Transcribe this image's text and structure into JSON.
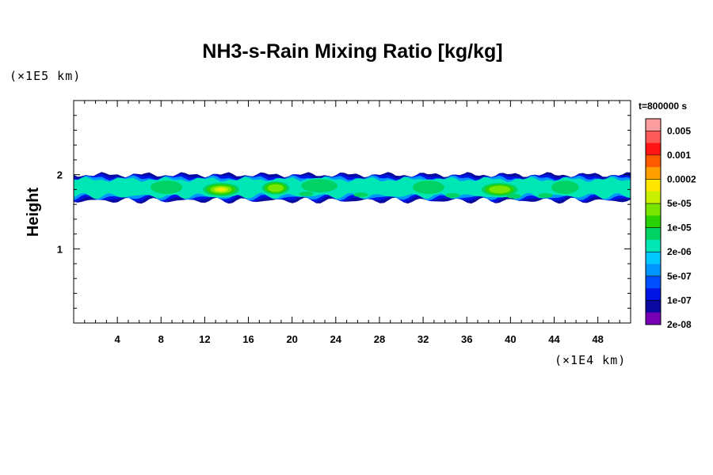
{
  "chart_data": {
    "type": "heatmap",
    "title": "NH3-s-Rain Mixing Ratio [kg/kg]",
    "ylabel": "Height",
    "xlabel": "",
    "x_unit": "(×1E4 km)",
    "y_unit": "(×1E5 km)",
    "xlim": [
      0,
      51
    ],
    "ylim": [
      0,
      3
    ],
    "x_ticks": [
      "4",
      "8",
      "12",
      "16",
      "20",
      "24",
      "28",
      "32",
      "36",
      "40",
      "44",
      "48"
    ],
    "y_ticks": [
      "1",
      "2"
    ],
    "grid": false,
    "colorbar": {
      "title": "t=800000 s",
      "levels": [
        "0.005",
        "0.001",
        "0.0002",
        "5e-05",
        "1e-05",
        "2e-06",
        "5e-07",
        "1e-07",
        "2e-08"
      ],
      "colors": [
        "#ff9e9e",
        "#ff5a5a",
        "#ff1414",
        "#ff5a00",
        "#ffa000",
        "#ffe600",
        "#c8f000",
        "#78e600",
        "#28d200",
        "#00d264",
        "#00e6b4",
        "#00c8ff",
        "#0096ff",
        "#0050ff",
        "#0014e6",
        "#0a0aa0",
        "#7800b4"
      ]
    },
    "band": {
      "y_bottom": 1.65,
      "y_top": 2.0,
      "note_blobs": [
        {
          "x": 4,
          "y": 1.82,
          "w": 3.0,
          "level": "2e-06"
        },
        {
          "x": 8.5,
          "y": 1.83,
          "w": 3.5,
          "level": "1e-05"
        },
        {
          "x": 13.5,
          "y": 1.8,
          "w": 4.0,
          "level": "0.0002"
        },
        {
          "x": 18.5,
          "y": 1.82,
          "w": 3.0,
          "level": "5e-05"
        },
        {
          "x": 22.5,
          "y": 1.85,
          "w": 4.0,
          "level": "1e-05"
        },
        {
          "x": 27.5,
          "y": 1.82,
          "w": 3.0,
          "level": "2e-06"
        },
        {
          "x": 32.5,
          "y": 1.83,
          "w": 3.5,
          "level": "1e-05"
        },
        {
          "x": 39,
          "y": 1.8,
          "w": 4.0,
          "level": "5e-05"
        },
        {
          "x": 45,
          "y": 1.83,
          "w": 3.0,
          "level": "1e-05"
        },
        {
          "x": 49.5,
          "y": 1.8,
          "w": 2.0,
          "level": "2e-06"
        }
      ]
    }
  }
}
